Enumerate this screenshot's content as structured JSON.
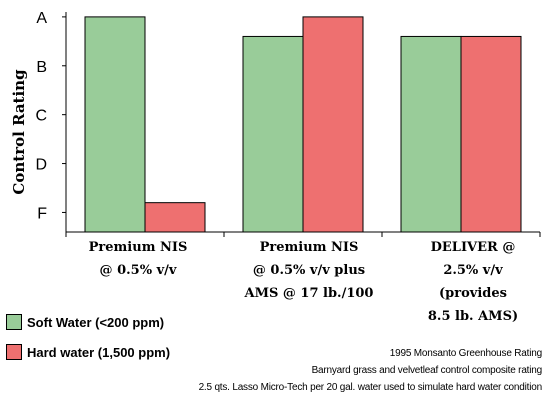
{
  "chart_data": {
    "type": "bar",
    "categories": [
      [
        "Premium NIS",
        "@ 0.5% v/v"
      ],
      [
        "Premium NIS",
        "@ 0.5% v/v plus",
        "AMS @ 17 lb./100"
      ],
      [
        "DELIVER @",
        "2.5% v/v",
        "(provides",
        "8.5 lb. AMS)"
      ]
    ],
    "ylabel": "Control Rating",
    "y_ticks": [
      "A",
      "B",
      "C",
      "D",
      "F"
    ],
    "y_tick_values": [
      5,
      4,
      3,
      2,
      1
    ],
    "ylim": [
      0.6,
      5.1
    ],
    "series": [
      {
        "name": "Soft Water (<200 ppm)",
        "values": [
          5.0,
          4.6,
          4.6
        ],
        "color": "#99cc99"
      },
      {
        "name": "Hard water (1,500 ppm)",
        "values": [
          1.2,
          5.0,
          4.6
        ],
        "color": "#ee7070"
      }
    ],
    "grid": false,
    "legend_position": "bottom-left"
  },
  "notes": [
    "1995 Monsanto Greenhouse Rating",
    "Barnyard grass and velvetleaf control composite rating",
    "2.5 qts. Lasso Micro-Tech per 20 gal. water used to simulate hard water condition"
  ]
}
